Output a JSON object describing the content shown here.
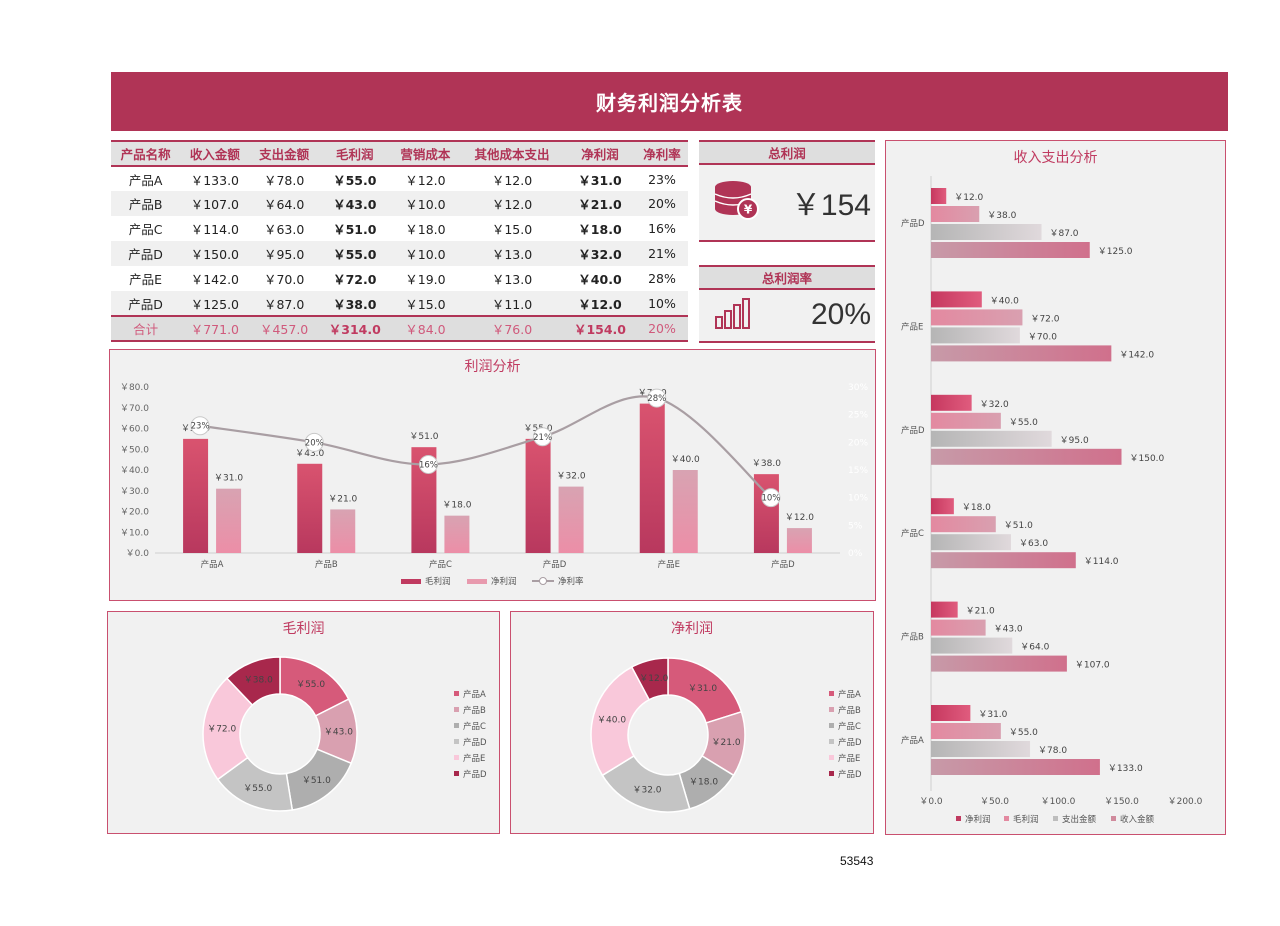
{
  "title": "财务利润分析表",
  "table": {
    "headers": [
      "产品名称",
      "收入金额",
      "支出金额",
      "毛利润",
      "营销成本",
      "其他成本支出",
      "净利润",
      "净利率"
    ],
    "rows": [
      [
        "产品A",
        "￥133.0",
        "￥78.0",
        "￥55.0",
        "￥12.0",
        "￥12.0",
        "￥31.0",
        "23%"
      ],
      [
        "产品B",
        "￥107.0",
        "￥64.0",
        "￥43.0",
        "￥10.0",
        "￥12.0",
        "￥21.0",
        "20%"
      ],
      [
        "产品C",
        "￥114.0",
        "￥63.0",
        "￥51.0",
        "￥18.0",
        "￥15.0",
        "￥18.0",
        "16%"
      ],
      [
        "产品D",
        "￥150.0",
        "￥95.0",
        "￥55.0",
        "￥10.0",
        "￥13.0",
        "￥32.0",
        "21%"
      ],
      [
        "产品E",
        "￥142.0",
        "￥70.0",
        "￥72.0",
        "￥19.0",
        "￥13.0",
        "￥40.0",
        "28%"
      ],
      [
        "产品D",
        "￥125.0",
        "￥87.0",
        "￥38.0",
        "￥15.0",
        "￥11.0",
        "￥12.0",
        "10%"
      ]
    ],
    "total": [
      "合计",
      "￥771.0",
      "￥457.0",
      "￥314.0",
      "￥84.0",
      "￥76.0",
      "￥154.0",
      "20%"
    ]
  },
  "kpis": {
    "total_profit": {
      "label": "总利润",
      "value": "￥154",
      "icon": "coins-icon"
    },
    "profit_rate": {
      "label": "总利润率",
      "value": "20%",
      "icon": "bar-chart-icon"
    }
  },
  "colors": {
    "primary": "#b03456",
    "bar_dark": "#cc4a6e",
    "bar_light": "#e89aae",
    "line": "#a99ea3",
    "panel_bg": "#f1f1f1"
  },
  "footer_number": "53543",
  "chart_data": [
    {
      "id": "profit",
      "type": "bar",
      "title": "利润分析",
      "categories": [
        "产品A",
        "产品B",
        "产品C",
        "产品D",
        "产品E",
        "产品D"
      ],
      "series": [
        {
          "name": "毛利润",
          "values": [
            55,
            43,
            51,
            55,
            72,
            38
          ],
          "labels": [
            "￥55.0",
            "￥43.0",
            "￥51.0",
            "￥55.0",
            "￥72.0",
            "￥38.0"
          ]
        },
        {
          "name": "净利润",
          "values": [
            31,
            21,
            18,
            32,
            40,
            12
          ],
          "labels": [
            "￥31.0",
            "￥21.0",
            "￥18.0",
            "￥32.0",
            "￥40.0",
            "￥12.0"
          ]
        },
        {
          "name": "净利率",
          "type": "line",
          "values": [
            23,
            20,
            16,
            21,
            28,
            10
          ],
          "labels": [
            "23%",
            "20%",
            "16%",
            "21%",
            "28%",
            "10%"
          ]
        }
      ],
      "ylim": [
        0,
        80
      ],
      "yticks": [
        "￥0.0",
        "￥10.0",
        "￥20.0",
        "￥30.0",
        "￥40.0",
        "￥50.0",
        "￥60.0",
        "￥70.0",
        "￥80.0"
      ],
      "y2lim": [
        0,
        30
      ],
      "y2ticks": [
        "0%",
        "5%",
        "10%",
        "15%",
        "20%",
        "25%",
        "30%"
      ],
      "legend": "bottom"
    },
    {
      "id": "gross",
      "type": "pie",
      "title": "毛利润",
      "donut": true,
      "categories": [
        "产品A",
        "产品B",
        "产品C",
        "产品D",
        "产品E",
        "产品D"
      ],
      "values": [
        55,
        43,
        51,
        55,
        72,
        38
      ],
      "labels": [
        "￥55.0",
        "￥43.0",
        "￥51.0",
        "￥55.0",
        "￥72.0",
        "￥38.0"
      ],
      "colors": [
        "#d65a7a",
        "#d9a0b0",
        "#aeaeae",
        "#c4c4c4",
        "#f9c8da",
        "#a8284c"
      ],
      "legend": "right"
    },
    {
      "id": "net",
      "type": "pie",
      "title": "净利润",
      "donut": true,
      "categories": [
        "产品A",
        "产品B",
        "产品C",
        "产品D",
        "产品E",
        "产品D"
      ],
      "values": [
        31,
        21,
        18,
        32,
        40,
        12
      ],
      "labels": [
        "￥31.0",
        "￥21.0",
        "￥18.0",
        "￥32.0",
        "￥40.0",
        "￥12.0"
      ],
      "colors": [
        "#d65a7a",
        "#d9a0b0",
        "#aeaeae",
        "#c4c4c4",
        "#f9c8da",
        "#a8284c"
      ],
      "legend": "right"
    },
    {
      "id": "income",
      "type": "bar",
      "orientation": "horizontal",
      "title": "收入支出分析",
      "categories": [
        "产品D",
        "产品E",
        "产品D",
        "产品C",
        "产品B",
        "产品A"
      ],
      "series": [
        {
          "name": "净利润",
          "values": [
            12,
            40,
            32,
            18,
            21,
            31
          ],
          "labels": [
            "￥12.0",
            "￥40.0",
            "￥32.0",
            "￥18.0",
            "￥21.0",
            "￥31.0"
          ]
        },
        {
          "name": "毛利润",
          "values": [
            38,
            72,
            55,
            51,
            43,
            55
          ],
          "labels": [
            "￥38.0",
            "￥72.0",
            "￥55.0",
            "￥51.0",
            "￥43.0",
            "￥55.0"
          ]
        },
        {
          "name": "支出金额",
          "values": [
            87,
            70,
            95,
            63,
            64,
            78
          ],
          "labels": [
            "￥87.0",
            "￥70.0",
            "￥95.0",
            "￥63.0",
            "￥64.0",
            "￥78.0"
          ]
        },
        {
          "name": "收入金额",
          "values": [
            125,
            142,
            150,
            114,
            107,
            133
          ],
          "labels": [
            "￥125.0",
            "￥142.0",
            "￥150.0",
            "￥114.0",
            "￥107.0",
            "￥133.0"
          ]
        }
      ],
      "xlim": [
        0,
        200
      ],
      "xticks": [
        "￥0.0",
        "￥50.0",
        "￥100.0",
        "￥150.0",
        "￥200.0"
      ],
      "legend": "bottom"
    }
  ]
}
